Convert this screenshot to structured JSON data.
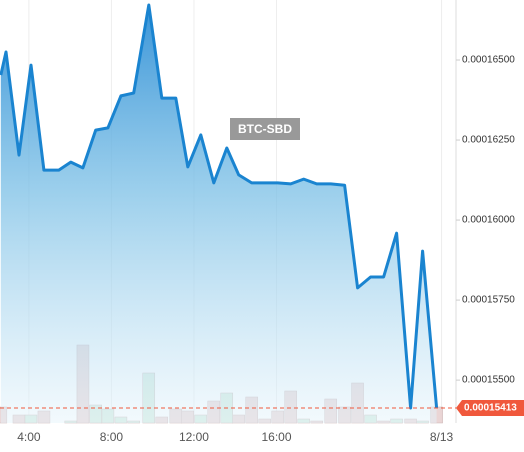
{
  "chart_data": {
    "type": "area",
    "x": [
      2.64,
      2.89,
      3.52,
      4.1,
      4.73,
      5.45,
      6.03,
      6.62,
      7.24,
      7.83,
      8.46,
      9.08,
      9.81,
      10.44,
      11.12,
      11.7,
      12.33,
      12.96,
      13.59,
      14.17,
      14.8,
      15.43,
      16.06,
      16.69,
      17.32,
      17.95,
      18.63,
      19.3,
      19.93,
      20.56,
      21.19,
      21.82,
      22.5,
      23.08,
      23.76
    ],
    "series": [
      {
        "name": "BTC-SBD",
        "color": "#1a84d0",
        "values": [
          0.00016453,
          0.00016525,
          0.00016203,
          0.00016484,
          0.00016156,
          0.00016156,
          0.00016181,
          0.00016163,
          0.00016281,
          0.00016288,
          0.00016388,
          0.00016397,
          0.00016672,
          0.00016381,
          0.00016381,
          0.00016166,
          0.00016266,
          0.00016116,
          0.00016225,
          0.00016141,
          0.00016116,
          0.00016116,
          0.00016116,
          0.00016113,
          0.00016128,
          0.00016113,
          0.00016113,
          0.00016109,
          0.00015788,
          0.00015822,
          0.00015822,
          0.00015959,
          0.00015413,
          0.00015903,
          0.00015413
        ]
      },
      {
        "axis": "y2",
        "color": "#e8d0d0",
        "up_color": "#cfeadc",
        "values": [
          16,
          0,
          8,
          8,
          12,
          0,
          2,
          78,
          18,
          14,
          6,
          2,
          50,
          6,
          14,
          12,
          8,
          22,
          30,
          8,
          26,
          4,
          12,
          32,
          4,
          2,
          24,
          16,
          40,
          8,
          2,
          4,
          4,
          2,
          16
        ]
      }
    ],
    "last_price": 0.00015413,
    "last_price_color": "#f0583c",
    "xlim": [
      2.6,
      24.7
    ],
    "xticks": [
      {
        "value": 4,
        "label": "4:00"
      },
      {
        "value": 8,
        "label": "8:00"
      },
      {
        "value": 12,
        "label": "12:00"
      },
      {
        "value": 16,
        "label": "16:00"
      },
      {
        "value": 24,
        "label": "8/13"
      }
    ],
    "ylim": [
      0.00015366,
      0.000166875
    ],
    "yticks": [
      {
        "value": 0.000155,
        "label": "0.00015500"
      },
      {
        "value": 0.0001575,
        "label": "0.00015750"
      },
      {
        "value": 0.00016,
        "label": "0.00016000"
      },
      {
        "value": 0.0001625,
        "label": "0.00016250"
      },
      {
        "value": 0.000165,
        "label": "0.00016500"
      }
    ],
    "y2lim": [
      0,
      100
    ]
  }
}
